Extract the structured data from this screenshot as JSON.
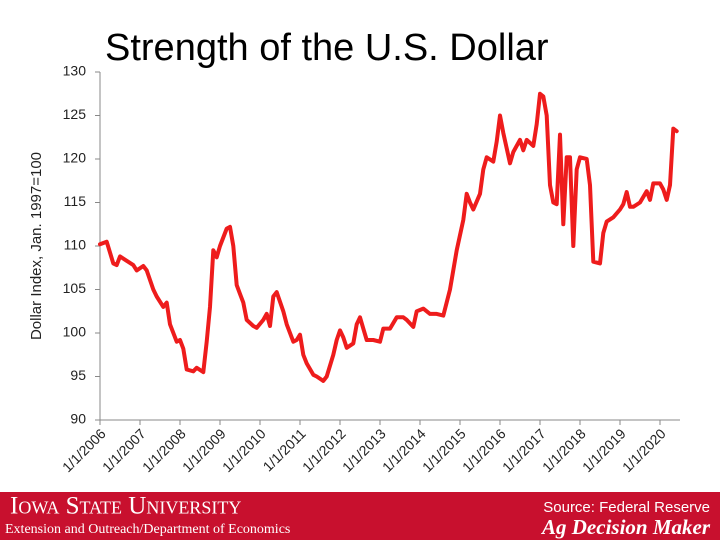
{
  "chart_data": {
    "type": "line",
    "title": "Strength of the U.S. Dollar",
    "y_label": "Dollar Index, Jan. 1997=100",
    "color": "#ee1c1c",
    "x": [
      "2006-01",
      "2006-03",
      "2006-05",
      "2006-06",
      "2006-07",
      "2006-09",
      "2006-11",
      "2006-12",
      "2007-02",
      "2007-03",
      "2007-05",
      "2007-06",
      "2007-08",
      "2007-09",
      "2007-10",
      "2007-12",
      "2008-01",
      "2008-02",
      "2008-03",
      "2008-05",
      "2008-06",
      "2008-08",
      "2008-09",
      "2008-10",
      "2008-11",
      "2008-12",
      "2009-01",
      "2009-03",
      "2009-04",
      "2009-05",
      "2009-06",
      "2009-07",
      "2009-08",
      "2009-09",
      "2009-11",
      "2009-12",
      "2010-02",
      "2010-03",
      "2010-04",
      "2010-05",
      "2010-06",
      "2010-08",
      "2010-09",
      "2010-11",
      "2010-12",
      "2011-01",
      "2011-02",
      "2011-03",
      "2011-05",
      "2011-06",
      "2011-08",
      "2011-09",
      "2011-11",
      "2011-12",
      "2012-01",
      "2012-02",
      "2012-03",
      "2012-05",
      "2012-06",
      "2012-07",
      "2012-08",
      "2012-09",
      "2012-11",
      "2013-01",
      "2013-02",
      "2013-04",
      "2013-06",
      "2013-08",
      "2013-09",
      "2013-11",
      "2013-12",
      "2014-02",
      "2014-04",
      "2014-06",
      "2014-08",
      "2014-10",
      "2014-12",
      "2015-02",
      "2015-03",
      "2015-04",
      "2015-05",
      "2015-07",
      "2015-08",
      "2015-09",
      "2015-11",
      "2015-12",
      "2016-01",
      "2016-02",
      "2016-04",
      "2016-05",
      "2016-07",
      "2016-08",
      "2016-09",
      "2016-11",
      "2016-12",
      "2017-01",
      "2017-02",
      "2017-03",
      "2017-04",
      "2017-05",
      "2017-06",
      "2017-07",
      "2017-08",
      "2017-09",
      "2017-10",
      "2017-11",
      "2017-12",
      "2018-01",
      "2018-03",
      "2018-04",
      "2018-05",
      "2018-07",
      "2018-08",
      "2018-09",
      "2018-11",
      "2019-01",
      "2019-02",
      "2019-03",
      "2019-04",
      "2019-05",
      "2019-07",
      "2019-09",
      "2019-10",
      "2019-11",
      "2020-01",
      "2020-02",
      "2020-03",
      "2020-04",
      "2020-05",
      "2020-06"
    ],
    "values": [
      110.2,
      110.5,
      108,
      107.8,
      108.8,
      108.3,
      107.8,
      107.2,
      107.7,
      107.2,
      105,
      104.2,
      103,
      103.5,
      101,
      99,
      99.2,
      98.2,
      95.8,
      95.6,
      96,
      95.5,
      99,
      103,
      109.5,
      108.7,
      110,
      112,
      112.2,
      110,
      105.5,
      104.5,
      103.5,
      101.5,
      100.8,
      100.6,
      101.5,
      102.2,
      100.8,
      104.2,
      104.7,
      102.5,
      101,
      99,
      99.2,
      99.8,
      97.5,
      96.5,
      95.2,
      95,
      94.5,
      95,
      97.5,
      99.2,
      100.3,
      99.5,
      98.3,
      98.8,
      101,
      101.8,
      100.5,
      99.2,
      99.2,
      99,
      100.5,
      100.5,
      101.8,
      101.8,
      101.5,
      100.7,
      102.5,
      102.8,
      102.2,
      102.2,
      102,
      105,
      109.5,
      113,
      116,
      115,
      114.2,
      116,
      118.8,
      120.2,
      119.7,
      122,
      125,
      123,
      119.5,
      120.8,
      122.2,
      121,
      122.2,
      121.5,
      124,
      127.5,
      127.2,
      125,
      117,
      115,
      114.8,
      122.8,
      112.5,
      120.2,
      120.2,
      110,
      118.8,
      120.2,
      120,
      117,
      108.2,
      108,
      111.5,
      112.8,
      113.3,
      114.2,
      114.8,
      116.2,
      114.5,
      114.5,
      115,
      116.3,
      115.3,
      117.2,
      117.2,
      116.5,
      115.3,
      117,
      123.5,
      123.2
    ],
    "xlim": [
      "2006-01",
      "2020-07"
    ],
    "xticks": [
      {
        "value": "2006-01",
        "label": "1/1/2006"
      },
      {
        "value": "2007-01",
        "label": "1/1/2007"
      },
      {
        "value": "2008-01",
        "label": "1/1/2008"
      },
      {
        "value": "2009-01",
        "label": "1/1/2009"
      },
      {
        "value": "2010-01",
        "label": "1/1/2010"
      },
      {
        "value": "2011-01",
        "label": "1/1/2011"
      },
      {
        "value": "2012-01",
        "label": "1/1/2012"
      },
      {
        "value": "2013-01",
        "label": "1/1/2013"
      },
      {
        "value": "2014-01",
        "label": "1/1/2014"
      },
      {
        "value": "2015-01",
        "label": "1/1/2015"
      },
      {
        "value": "2016-01",
        "label": "1/1/2016"
      },
      {
        "value": "2017-01",
        "label": "1/1/2017"
      },
      {
        "value": "2018-01",
        "label": "1/1/2018"
      },
      {
        "value": "2019-01",
        "label": "1/1/2019"
      },
      {
        "value": "2020-01",
        "label": "1/1/2020"
      }
    ],
    "ylim": [
      90,
      130
    ],
    "yticks": [
      90,
      95,
      100,
      105,
      110,
      115,
      120,
      125,
      130
    ],
    "grid": false
  },
  "footer": {
    "university": "Iowa State University",
    "department": "Extension and Outreach/Department of Economics",
    "source": "Source: Federal Reserve",
    "brand": "Ag Decision Maker"
  }
}
